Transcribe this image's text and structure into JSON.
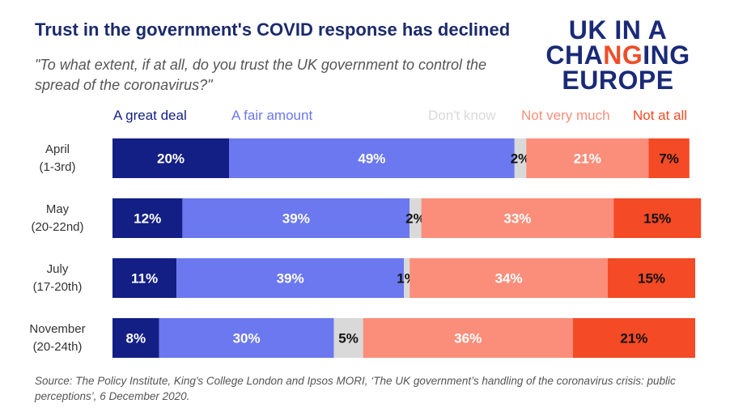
{
  "title": "Trust in the government's COVID response has declined",
  "subtitle": "\"To what extent, if at all, do you trust the UK government to control the spread of the coronavirus?\"",
  "logo": {
    "line1": "UK IN A",
    "line2_a": "CHA",
    "line2_b": "NG",
    "line2_c": "ING",
    "line3": "EUROPE"
  },
  "source": "Source: The Policy Institute, King's College London and Ipsos MORI, ‘The UK government’s handling of the coronavirus crisis: public perceptions’, 6 December 2020.",
  "colors": {
    "great_deal": "#131f85",
    "fair_amount": "#6b78ef",
    "dont_know": "#d9d9d9",
    "not_very_much": "#fa8e7a",
    "not_at_all": "#f44a25"
  },
  "chart_data": {
    "type": "bar",
    "orientation": "horizontal",
    "stacked": true,
    "categories": [
      {
        "line1": "April",
        "line2": "(1-3rd)"
      },
      {
        "line1": "May",
        "line2": "(20-22nd)"
      },
      {
        "line1": "July",
        "line2": "(17-20th)"
      },
      {
        "line1": "November",
        "line2": "(20-24th)"
      }
    ],
    "series": [
      {
        "name": "A great deal",
        "key": "great_deal",
        "values": [
          20,
          12,
          11,
          8
        ],
        "labels": [
          "20%",
          "12%",
          "11%",
          "8%"
        ]
      },
      {
        "name": "A fair amount",
        "key": "fair_amount",
        "values": [
          49,
          39,
          39,
          30
        ],
        "labels": [
          "49%",
          "39%",
          "39%",
          "30%"
        ]
      },
      {
        "name": "Don't know",
        "key": "dont_know",
        "values": [
          2,
          2,
          1,
          5
        ],
        "labels": [
          "2%",
          "2%",
          "1%",
          "5%"
        ]
      },
      {
        "name": "Not very much",
        "key": "not_very_much",
        "values": [
          21,
          33,
          34,
          36
        ],
        "labels": [
          "21%",
          "33%",
          "34%",
          "36%"
        ]
      },
      {
        "name": "Not at all",
        "key": "not_at_all",
        "values": [
          7,
          15,
          15,
          21
        ],
        "labels": [
          "7%",
          "15%",
          "15%",
          "21%"
        ]
      }
    ],
    "unit": "%",
    "xlim": [
      0,
      100
    ]
  }
}
